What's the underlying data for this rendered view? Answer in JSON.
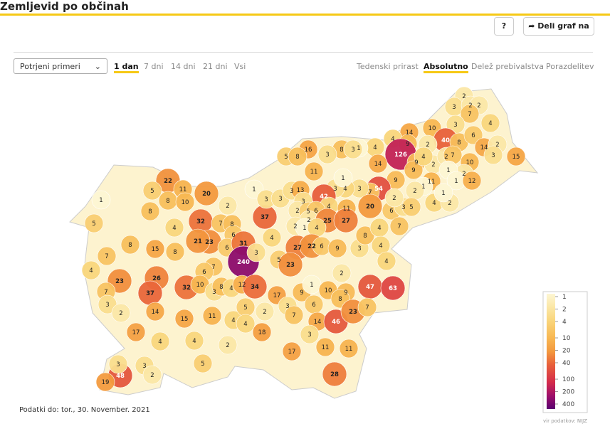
{
  "header": {
    "title": "Zemljevid po občinah",
    "help": "?",
    "share": "Deli graf na"
  },
  "controls": {
    "dropdown": "Potrjeni primeri",
    "periods": [
      "1 dan",
      "7 dni",
      "14 dni",
      "21 dni",
      "Vsi"
    ],
    "active_period": 0,
    "modes": [
      "Tedenski prirast",
      "Absolutno",
      "Delež prebivalstva",
      "Porazdelitev"
    ],
    "active_mode": 1
  },
  "map": {
    "type": "choropleth",
    "log_scale": true,
    "municipalities": [
      2,
      3,
      2,
      2,
      7,
      3,
      4,
      10,
      14,
      4,
      9,
      40,
      8,
      6,
      14,
      2,
      15,
      2,
      126,
      4,
      1,
      8,
      3,
      16,
      5,
      8,
      11,
      3,
      14,
      9,
      9,
      2,
      4,
      2,
      7,
      10,
      2,
      1,
      3,
      1,
      12,
      11,
      1,
      2,
      9,
      54,
      7,
      3,
      4,
      3,
      42,
      1,
      4,
      11,
      20,
      6,
      3,
      5,
      4,
      2,
      1,
      2,
      22,
      11,
      5,
      8,
      10,
      1,
      8,
      20,
      5,
      4,
      32,
      23,
      21,
      8,
      15,
      8,
      7,
      4,
      23,
      26,
      37,
      32,
      7,
      3,
      2,
      14,
      15,
      17,
      4,
      4,
      2,
      5,
      48,
      19,
      3,
      3,
      2,
      1,
      2,
      7,
      8,
      6,
      6,
      31,
      37,
      3,
      3,
      3,
      13,
      3,
      2,
      5,
      6,
      2,
      25,
      27,
      2,
      1,
      4,
      4,
      27,
      22,
      6,
      9,
      3,
      8,
      4,
      7,
      4,
      4,
      240,
      3,
      5,
      23,
      2,
      47,
      63,
      7,
      6,
      10,
      3,
      8,
      4,
      12,
      34,
      17,
      9,
      1,
      10,
      9,
      8,
      6,
      3,
      2,
      11,
      4,
      5,
      4,
      18,
      7,
      14,
      46,
      23,
      7,
      3,
      11,
      11,
      17,
      28
    ],
    "legend": {
      "ticks": [
        1,
        2,
        4,
        10,
        20,
        40,
        100,
        200,
        400
      ],
      "colors": [
        "#fdf6d3",
        "#fbe7a6",
        "#f9d67c",
        "#f8b752",
        "#f3993e",
        "#e8603a",
        "#d42c4b",
        "#9e0f6a",
        "#5a0070"
      ],
      "source": "vir podatkov: NIJZ"
    },
    "footnote": "Podatki do: tor., 30. November. 2021"
  }
}
